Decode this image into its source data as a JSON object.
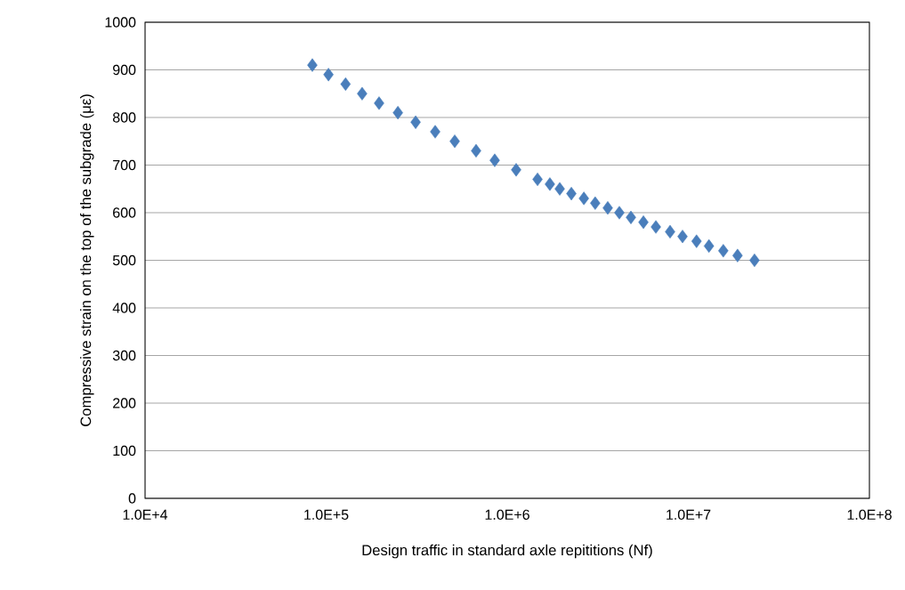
{
  "chart_data": {
    "type": "scatter",
    "xlabel": "Design traffic in standard axle repititions  (Nf)",
    "ylabel": "Compressive strain on the top of the subgrade (με)",
    "x": [
      83900,
      103000,
      128000,
      158000,
      196000,
      249000,
      312000,
      400000,
      513000,
      673000,
      853000,
      1120000,
      1470000,
      1720000,
      1950000,
      2260000,
      2650000,
      3060000,
      3590000,
      4160000,
      4820000,
      5650000,
      6620000,
      7930000,
      9290000,
      11100000,
      13000000,
      15600000,
      18700000,
      23200000
    ],
    "series": [
      {
        "color": "#4a7ebb",
        "values": [
          910,
          890,
          870,
          850,
          830,
          810,
          790,
          770,
          750,
          730,
          710,
          690,
          670,
          660,
          650,
          640,
          630,
          620,
          610,
          600,
          590,
          580,
          570,
          560,
          550,
          540,
          530,
          520,
          510,
          500
        ]
      }
    ],
    "log": "x",
    "xlim": [
      10000,
      100000000
    ],
    "xticks": [
      {
        "value": 10000,
        "label": "1.0E+4"
      },
      {
        "value": 100000,
        "label": "1.0E+5"
      },
      {
        "value": 1000000,
        "label": "1.0E+6"
      },
      {
        "value": 10000000,
        "label": "1.0E+7"
      },
      {
        "value": 100000000,
        "label": "1.0E+8"
      }
    ],
    "ylim": [
      0,
      1000
    ],
    "yticks": [
      0,
      100,
      200,
      300,
      400,
      500,
      600,
      700,
      800,
      900,
      1000
    ],
    "grid": "y",
    "marker": "diamond"
  }
}
